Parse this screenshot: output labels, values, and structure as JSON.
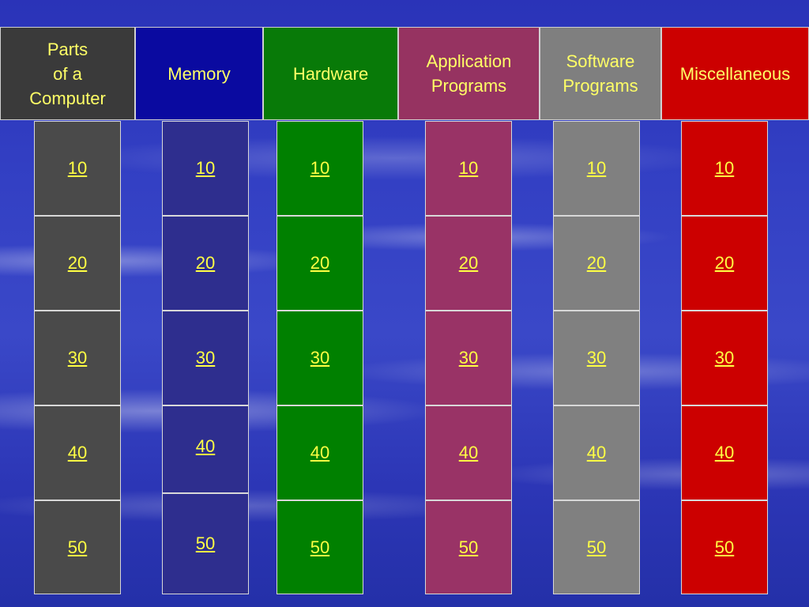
{
  "categories": [
    {
      "label": "Parts\nof a\nComputer",
      "color": "#3a3a3a"
    },
    {
      "label": "Memory",
      "color": "#0a0aa0"
    },
    {
      "label": "Hardware",
      "color": "#087a08"
    },
    {
      "label": "Application\nPrograms",
      "color": "#963361"
    },
    {
      "label": "Software\nPrograms",
      "color": "#7f7f7f"
    },
    {
      "label": "Miscellaneous",
      "color": "#cc0000"
    }
  ],
  "columns": [
    {
      "color": "#4a4a4a",
      "values": [
        "10",
        "20",
        "30",
        "40",
        "50"
      ]
    },
    {
      "color": "#2e2e8e",
      "values": [
        "10",
        "20",
        "30",
        "40",
        "50"
      ]
    },
    {
      "color": "#008000",
      "values": [
        "10",
        "20",
        "30",
        "40",
        "50"
      ]
    },
    {
      "color": "#993366",
      "values": [
        "10",
        "20",
        "30",
        "40",
        "50"
      ]
    },
    {
      "color": "#808080",
      "values": [
        "10",
        "20",
        "30",
        "40",
        "50"
      ]
    },
    {
      "color": "#cc0000",
      "values": [
        "10",
        "20",
        "30",
        "40",
        "50"
      ]
    }
  ]
}
